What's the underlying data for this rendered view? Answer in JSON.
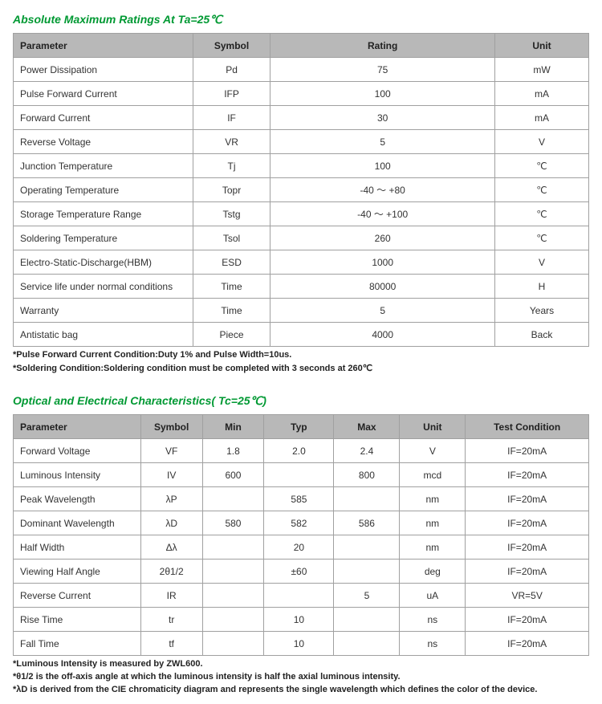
{
  "section1": {
    "title": "Absolute Maximum Ratings At Ta=25℃",
    "columns": [
      "Parameter",
      "Symbol",
      "Rating",
      "Unit"
    ],
    "rows": [
      {
        "param": "Power Dissipation",
        "symbol": "Pd",
        "rating": "75",
        "unit": "mW"
      },
      {
        "param": "Pulse Forward Current",
        "symbol": "IFP",
        "rating": "100",
        "unit": "mA"
      },
      {
        "param": "Forward Current",
        "symbol": "IF",
        "rating": "30",
        "unit": "mA"
      },
      {
        "param": "Reverse Voltage",
        "symbol": "VR",
        "rating": "5",
        "unit": "V"
      },
      {
        "param": "Junction Temperature",
        "symbol": "Tj",
        "rating": "100",
        "unit": "℃"
      },
      {
        "param": "Operating Temperature",
        "symbol": "Topr",
        "rating": "-40 ～ +80",
        "unit": "℃"
      },
      {
        "param": "Storage Temperature Range",
        "symbol": "Tstg",
        "rating": "-40 ～ +100",
        "unit": "℃"
      },
      {
        "param": "Soldering Temperature",
        "symbol": "Tsol",
        "rating": "260",
        "unit": "℃"
      },
      {
        "param": "Electro-Static-Discharge(HBM)",
        "symbol": "ESD",
        "rating": "1000",
        "unit": "V"
      },
      {
        "param": "Service life under normal conditions",
        "symbol": "Time",
        "rating": "80000",
        "unit": "H"
      },
      {
        "param": "Warranty",
        "symbol": "Time",
        "rating": "5",
        "unit": "Years"
      },
      {
        "param": "Antistatic bag",
        "symbol": "Piece",
        "rating": "4000",
        "unit": "Back"
      }
    ],
    "footnotes": [
      "*Pulse Forward Current Condition:Duty 1% and Pulse Width=10us.",
      "*Soldering Condition:Soldering condition must be completed with 3 seconds at 260℃"
    ]
  },
  "section2": {
    "title": "Optical and Electrical Characteristics( Tc=25℃)",
    "columns": [
      "Parameter",
      "Symbol",
      "Min",
      "Typ",
      "Max",
      "Unit",
      "Test Condition"
    ],
    "rows": [
      {
        "param": "Forward Voltage",
        "symbol": "VF",
        "min": "1.8",
        "typ": "2.0",
        "max": "2.4",
        "unit": "V",
        "cond": "IF=20mA"
      },
      {
        "param": "Luminous Intensity",
        "symbol": "IV",
        "min": "600",
        "typ": "",
        "max": "800",
        "unit": "mcd",
        "cond": "IF=20mA"
      },
      {
        "param": "Peak Wavelength",
        "symbol": "λP",
        "min": "",
        "typ": "585",
        "max": "",
        "unit": "nm",
        "cond": "IF=20mA"
      },
      {
        "param": "Dominant Wavelength",
        "symbol": "λD",
        "min": "580",
        "typ": "582",
        "max": "586",
        "unit": "nm",
        "cond": "IF=20mA"
      },
      {
        "param": "Half Width",
        "symbol": "Δλ",
        "min": "",
        "typ": "20",
        "max": "",
        "unit": "nm",
        "cond": "IF=20mA"
      },
      {
        "param": "Viewing Half Angle",
        "symbol": "2θ1/2",
        "min": "",
        "typ": "±60",
        "max": "",
        "unit": "deg",
        "cond": "IF=20mA"
      },
      {
        "param": "Reverse Current",
        "symbol": "IR",
        "min": "",
        "typ": "",
        "max": "5",
        "unit": "uA",
        "cond": "VR=5V"
      },
      {
        "param": "Rise Time",
        "symbol": "tr",
        "min": "",
        "typ": "10",
        "max": "",
        "unit": "ns",
        "cond": "IF=20mA"
      },
      {
        "param": "Fall Time",
        "symbol": "tf",
        "min": "",
        "typ": "10",
        "max": "",
        "unit": "ns",
        "cond": "IF=20mA"
      }
    ],
    "footnotes": [
      "*Luminous Intensity is measured by ZWL600.",
      "*θ1/2 is the off-axis angle at which the luminous intensity is half the axial luminous intensity.",
      "*λD is derived from the CIE chromaticity diagram and represents the single wavelength which defines the color of the device."
    ]
  }
}
